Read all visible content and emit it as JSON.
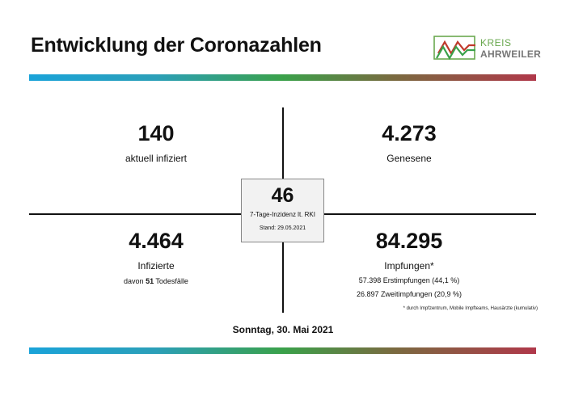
{
  "header": {
    "title": "Entwicklung der Coronazahlen",
    "logo": {
      "line1": "KREIS",
      "line2": "AHRWEILER"
    }
  },
  "stats": {
    "active": {
      "value": "140",
      "label": "aktuell infiziert"
    },
    "recovered": {
      "value": "4.273",
      "label": "Genesene"
    },
    "infected": {
      "value": "4.464",
      "label": "Infizierte",
      "deaths_prefix": "davon ",
      "deaths_value": "51",
      "deaths_suffix": " Todesfälle"
    },
    "vaccinations": {
      "value": "84.295",
      "label": "Impfungen*",
      "first": "57.398 Erstimpfungen (44,1 %)",
      "second": "26.897 Zweitimpfungen (20,9 %)",
      "footnote": "* durch Impfzentrum, Mobile Impfteams, Hausärzte (kumulativ)"
    },
    "incidence": {
      "value": "46",
      "label": "7-Tage-Inzidenz lt. RKI",
      "stand": "Stand: 29.05.2021"
    }
  },
  "footer": {
    "date": "Sonntag, 30. Mai 2021"
  },
  "colors": {
    "gradient": [
      "#1aa3d9",
      "#3aa14a",
      "#b0384a"
    ],
    "logo_green": "#6aa84f"
  }
}
